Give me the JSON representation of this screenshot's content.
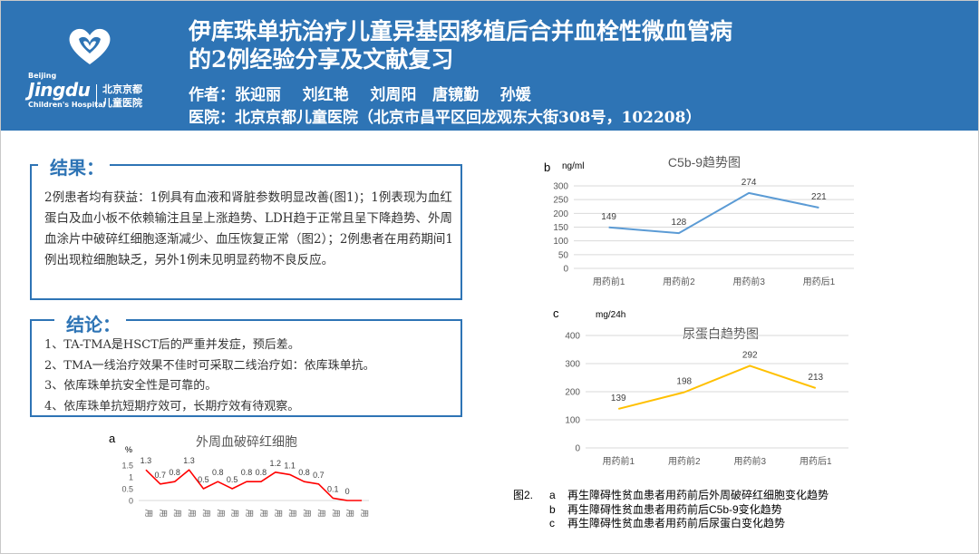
{
  "header": {
    "title_line1": "伊库珠单抗治疗儿童异基因移植后合并血栓性微血管病",
    "title_line2": "的2例经验分享及文献复习",
    "authors": "作者：张迎丽    刘红艳    刘周阳   唐镜勤    孙媛",
    "hospital": "医院：北京京都儿童医院（北京市昌平区回龙观东大街308号，102208）"
  },
  "logo": {
    "city": "Beijing",
    "word": "Jingdu",
    "subtitle_en": "Children's Hospital",
    "name_cn_line1": "北京京都",
    "name_cn_line2": "儿童医院",
    "icon": "heart-hands-icon"
  },
  "results": {
    "label": " 结果：",
    "text": "2例患者均有获益：1例具有血液和肾脏参数明显改善(图1)；1例表现为血红蛋白及血小板不依赖输注且呈上涨趋势、LDH趋于正常且呈下降趋势、外周血涂片中破碎红细胞逐渐减少、血压恢复正常（图2）；2例患者在用药期间1例出现粒细胞缺乏，另外1例未见明显药物不良反应。"
  },
  "conclusions": {
    "label": " 结论：",
    "items": [
      "1、TA-TMA是HSCT后的严重并发症，预后差。",
      "2、TMA一线治疗效果不佳时可采取二线治疗如：依库珠单抗。",
      "3、依库珠单抗安全性是可靠的。",
      "4、依库珠单抗短期疗效可，长期疗效有待观察。"
    ]
  },
  "colors": {
    "header_bg": "#2e74b5",
    "box_border": "#2e74b5",
    "chart_a_line": "#ff0000",
    "chart_b_line": "#5b9bd5",
    "chart_c_line": "#ffc000",
    "gridline": "#d9d9d9"
  },
  "chart_data": [
    {
      "panel": "a",
      "type": "line",
      "title": "外周血破碎红细胞",
      "unit": "%",
      "ylim": [
        0,
        1.5
      ],
      "yticks": [
        0,
        0.5,
        1,
        1.5
      ],
      "grid": false,
      "categories": [
        "用",
        "用",
        "用",
        "用",
        "用",
        "用",
        "用",
        "用",
        "用",
        "用",
        "用",
        "用",
        "用",
        "用",
        "用",
        "用"
      ],
      "series": [
        {
          "values": [
            1.3,
            0.7,
            0.8,
            1.3,
            0.5,
            0.8,
            0.5,
            0.8,
            0.8,
            1.2,
            1.1,
            0.8,
            0.7,
            0.1,
            0,
            0
          ]
        }
      ],
      "data_labels": [
        "1.3",
        "0.7",
        "0.8",
        "1.3",
        "0.5",
        "0.8",
        "0.5",
        "0.8",
        "0.8",
        "1.2",
        "1.1",
        "0.8",
        "0.7",
        "0.1",
        "0",
        ""
      ]
    },
    {
      "panel": "b",
      "type": "line",
      "title": "C5b-9趋势图",
      "unit": "ng/ml",
      "ylim": [
        0,
        300
      ],
      "yticks": [
        0,
        50,
        100,
        150,
        200,
        250,
        300
      ],
      "grid": true,
      "categories": [
        "用药前1",
        "用药前2",
        "用药前3",
        "用药后1"
      ],
      "series": [
        {
          "values": [
            149,
            128,
            274,
            221
          ]
        }
      ]
    },
    {
      "panel": "c",
      "type": "line",
      "title": "尿蛋白趋势图",
      "unit": "mg/24h",
      "ylim": [
        0,
        400
      ],
      "yticks": [
        0,
        100,
        200,
        300,
        400
      ],
      "grid": true,
      "categories": [
        "用药前1",
        "用药前2",
        "用药前3",
        "用药后1"
      ],
      "series": [
        {
          "values": [
            139,
            198,
            292,
            213
          ]
        }
      ]
    }
  ],
  "caption": {
    "fig": "图2.",
    "items": [
      {
        "letter": "a",
        "text": "再生障碍性贫血患者用药前后外周破碎红细胞变化趋势"
      },
      {
        "letter": "b",
        "text": "再生障碍性贫血患者用药前后C5b-9变化趋势"
      },
      {
        "letter": "c",
        "text": "再生障碍性贫血患者用药前后尿蛋白变化趋势"
      }
    ]
  }
}
